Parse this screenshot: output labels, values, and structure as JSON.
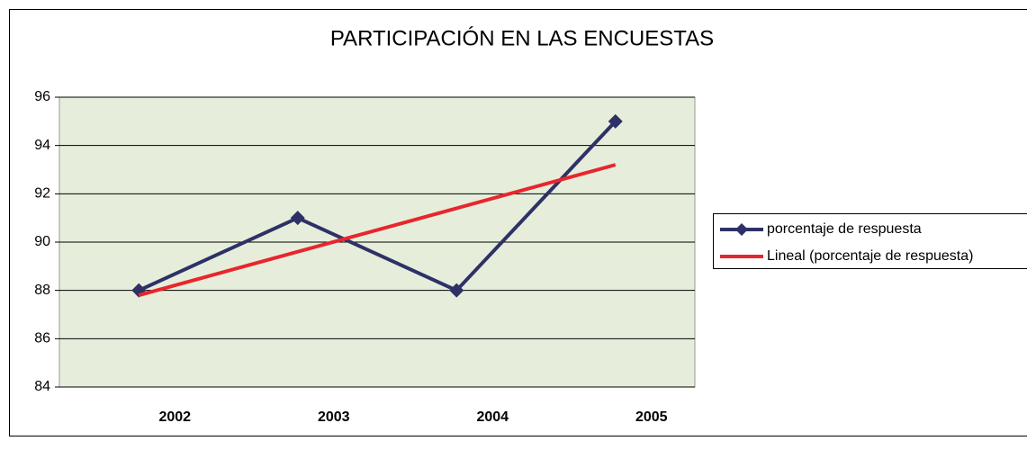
{
  "chart_data": {
    "type": "line",
    "title": "PARTICIPACIÓN EN LAS ENCUESTAS",
    "categories": [
      "2002",
      "2003",
      "2004",
      "2005"
    ],
    "series": [
      {
        "name": "porcentaje de respuesta",
        "color": "#2e3166",
        "values": [
          88,
          91,
          88,
          95
        ],
        "marker": "diamond"
      },
      {
        "name": "Lineal (porcentaje de respuesta)",
        "color": "#e8262d",
        "values": [
          87.8,
          89.6,
          91.4,
          93.2
        ]
      }
    ],
    "ylim": [
      84,
      96
    ],
    "yticks": [
      84,
      86,
      88,
      90,
      92,
      94,
      96
    ],
    "grid": true,
    "legend": "right"
  }
}
